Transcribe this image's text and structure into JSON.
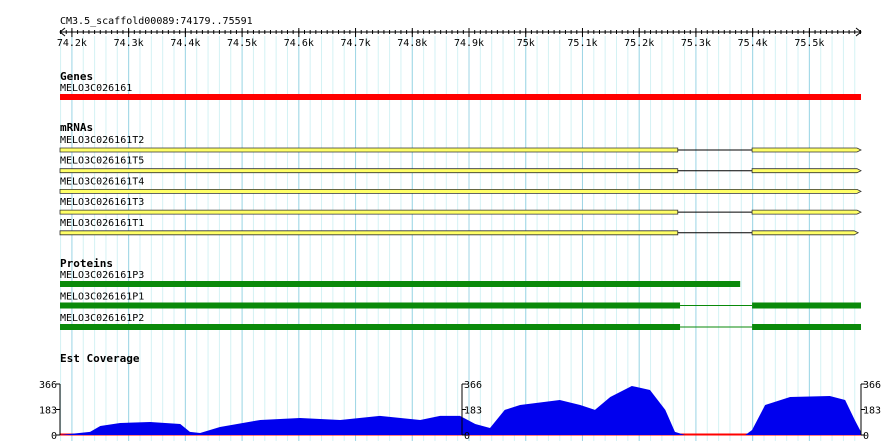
{
  "title": "CM3.5_scaffold00089:74179..75591",
  "scale": {
    "start": 74179,
    "end": 75591,
    "ticks": [
      {
        "value": 74200,
        "label": "74.2k"
      },
      {
        "value": 74300,
        "label": "74.3k"
      },
      {
        "value": 74400,
        "label": "74.4k"
      },
      {
        "value": 74500,
        "label": "74.5k"
      },
      {
        "value": 74600,
        "label": "74.6k"
      },
      {
        "value": 74700,
        "label": "74.7k"
      },
      {
        "value": 74800,
        "label": "74.8k"
      },
      {
        "value": 74900,
        "label": "74.9k"
      },
      {
        "value": 75000,
        "label": "75k"
      },
      {
        "value": 75100,
        "label": "75.1k"
      },
      {
        "value": 75200,
        "label": "75.2k"
      },
      {
        "value": 75300,
        "label": "75.3k"
      },
      {
        "value": 75400,
        "label": "75.4k"
      },
      {
        "value": 75500,
        "label": "75.5k"
      }
    ]
  },
  "tracks": [
    {
      "label": "Genes",
      "features": [
        {
          "name": "MELO3C026161",
          "segments": [
            [
              74179,
              75591
            ]
          ]
        }
      ]
    },
    {
      "label": "mRNAs",
      "features": [
        {
          "name": "MELO3C026161T2",
          "segments": [
            [
              74179,
              75268
            ],
            [
              75399,
              75591
            ]
          ]
        },
        {
          "name": "MELO3C026161T5",
          "segments": [
            [
              74179,
              75268
            ],
            [
              75399,
              75591
            ]
          ]
        },
        {
          "name": "MELO3C026161T4",
          "segments": [
            [
              74179,
              75591
            ]
          ]
        },
        {
          "name": "MELO3C026161T3",
          "segments": [
            [
              74179,
              75268
            ],
            [
              75399,
              75591
            ]
          ]
        },
        {
          "name": "MELO3C026161T1",
          "segments": [
            [
              74179,
              75268
            ],
            [
              75399,
              75586
            ]
          ]
        }
      ]
    },
    {
      "label": "Proteins",
      "features": [
        {
          "name": "MELO3C026161P3",
          "segments": [
            [
              74179,
              75378
            ]
          ]
        },
        {
          "name": "MELO3C026161P1",
          "segments": [
            [
              74179,
              75272
            ],
            [
              75399,
              75591
            ]
          ]
        },
        {
          "name": "MELO3C026161P2",
          "segments": [
            [
              74179,
              75272
            ],
            [
              75399,
              75591
            ]
          ]
        }
      ]
    }
  ],
  "coverage": {
    "label": "Est Coverage",
    "ylim": [
      0,
      366
    ],
    "yticks": [
      0,
      183,
      366
    ],
    "x": [
      74179,
      74232,
      74250,
      74285,
      74338,
      74391,
      74408,
      74426,
      74461,
      74532,
      74602,
      74673,
      74743,
      74814,
      74849,
      74884,
      74911,
      74937,
      74963,
      74990,
      75060,
      75096,
      75122,
      75149,
      75187,
      75219,
      75246,
      75263,
      75281,
      75325,
      75387,
      75399,
      75422,
      75466,
      75536,
      75563,
      75580,
      75591
    ],
    "values": [
      0,
      22,
      65,
      86,
      93,
      79,
      22,
      14,
      57,
      108,
      122,
      108,
      137,
      108,
      137,
      137,
      79,
      50,
      180,
      215,
      251,
      215,
      180,
      273,
      352,
      323,
      180,
      22,
      0,
      0,
      0,
      36,
      215,
      273,
      280,
      251,
      108,
      22
    ]
  }
}
